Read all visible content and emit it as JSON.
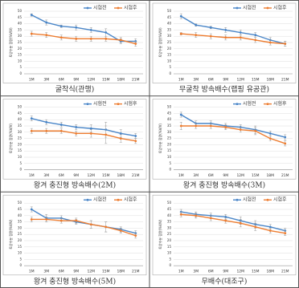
{
  "chart_data": [
    {
      "type": "line",
      "title": "굴착식(관행)",
      "y_label": "토양수분 함량(%V/V)",
      "categories": [
        "1M",
        "3M",
        "6M",
        "9M",
        "12M",
        "15M",
        "18M",
        "21M"
      ],
      "ylim": [
        0,
        50
      ],
      "yticks": [
        0,
        5,
        10,
        15,
        20,
        25,
        30,
        35,
        40,
        45,
        50
      ],
      "grid": true,
      "series": [
        {
          "name": "시험전",
          "color": "#4a86c8",
          "values": [
            47,
            41,
            38,
            37,
            35,
            33,
            26,
            26
          ],
          "errors": [
            1,
            2,
            1,
            2,
            2,
            3,
            2,
            2
          ]
        },
        {
          "name": "시험후",
          "color": "#ed7d31",
          "values": [
            32,
            31,
            29,
            28,
            28,
            28,
            27,
            24
          ],
          "errors": [
            2,
            2,
            2,
            2,
            2,
            2,
            2,
            2
          ]
        }
      ]
    },
    {
      "type": "line",
      "title": "무굴착 방속배수(랩핑 유공관)",
      "y_label": "토양수분 함량(%V/V)",
      "categories": [
        "1M",
        "3M",
        "6M",
        "9M",
        "12M",
        "15M",
        "18M",
        "21M"
      ],
      "ylim": [
        0,
        50
      ],
      "yticks": [
        0,
        5,
        10,
        15,
        20,
        25,
        30,
        35,
        40,
        45,
        50
      ],
      "grid": true,
      "series": [
        {
          "name": "시험전",
          "color": "#4a86c8",
          "values": [
            46,
            39,
            37,
            35,
            33,
            31,
            27,
            24
          ],
          "errors": [
            2,
            1,
            1,
            2,
            2,
            2,
            2,
            2
          ]
        },
        {
          "name": "시험후",
          "color": "#ed7d31",
          "values": [
            32,
            31,
            30,
            29,
            29,
            27,
            25,
            24
          ],
          "errors": [
            1,
            2,
            2,
            2,
            2,
            2,
            2,
            2
          ]
        }
      ]
    },
    {
      "type": "line",
      "title": "왕겨 충진형 방속배수(2M)",
      "y_label": "토양수분 함량(%V/V)",
      "categories": [
        "1M",
        "3M",
        "6M",
        "9M",
        "12M",
        "15M",
        "18M",
        "21M"
      ],
      "ylim": [
        0,
        50
      ],
      "yticks": [
        0,
        5,
        10,
        15,
        20,
        25,
        30,
        35,
        40,
        45,
        50
      ],
      "grid": true,
      "series": [
        {
          "name": "시험전",
          "color": "#4a86c8",
          "values": [
            41,
            38,
            36,
            34,
            33,
            32,
            29,
            27
          ],
          "errors": [
            2,
            2,
            2,
            2,
            3,
            6,
            3,
            2
          ]
        },
        {
          "name": "시험후",
          "color": "#ed7d31",
          "values": [
            31,
            31,
            31,
            29,
            29,
            28,
            25,
            23
          ],
          "errors": [
            2,
            2,
            2,
            2,
            3,
            7,
            3,
            2
          ]
        }
      ]
    },
    {
      "type": "line",
      "title": "왕겨 충진형 방속배수(3M)",
      "y_label": "토양수분 함량(%V/V)",
      "categories": [
        "1M",
        "3M",
        "6M",
        "9M",
        "12M",
        "15M",
        "18M",
        "21M"
      ],
      "ylim": [
        0,
        50
      ],
      "yticks": [
        0,
        5,
        10,
        15,
        20,
        25,
        30,
        35,
        40,
        45,
        50
      ],
      "grid": true,
      "series": [
        {
          "name": "시험전",
          "color": "#4a86c8",
          "values": [
            44,
            37,
            37,
            35,
            34,
            32,
            29,
            26
          ],
          "errors": [
            2,
            2,
            2,
            2,
            2,
            3,
            2,
            2
          ]
        },
        {
          "name": "시험후",
          "color": "#ed7d31",
          "values": [
            35,
            35,
            35,
            34,
            32,
            31,
            25,
            21
          ],
          "errors": [
            3,
            2,
            2,
            2,
            2,
            3,
            2,
            2
          ]
        }
      ]
    },
    {
      "type": "line",
      "title": "왕겨 충진형 방속배수(5M)",
      "y_label": "토양수분 함량(%V/V)",
      "categories": [
        "1M",
        "3M",
        "6M",
        "9M",
        "12M",
        "15M",
        "18M",
        "21M"
      ],
      "ylim": [
        0,
        50
      ],
      "yticks": [
        0,
        5,
        10,
        15,
        20,
        25,
        30,
        35,
        40,
        45,
        50
      ],
      "grid": true,
      "series": [
        {
          "name": "시험전",
          "color": "#4a86c8",
          "values": [
            45,
            38,
            38,
            35,
            33,
            31,
            29,
            26
          ],
          "errors": [
            2,
            3,
            2,
            2,
            3,
            4,
            2,
            2
          ]
        },
        {
          "name": "시험후",
          "color": "#ed7d31",
          "values": [
            37,
            37,
            36,
            36,
            33,
            31,
            28,
            24
          ],
          "errors": [
            2,
            2,
            2,
            2,
            3,
            4,
            2,
            2
          ]
        }
      ]
    },
    {
      "type": "line",
      "title": "무배수(대조구)",
      "y_label": "토양수분 함량(%V/V)",
      "categories": [
        "1M",
        "3M",
        "6M",
        "9M",
        "12M",
        "15M",
        "18M",
        "21M"
      ],
      "ylim": [
        0,
        50
      ],
      "yticks": [
        0,
        5,
        10,
        15,
        20,
        25,
        30,
        35,
        40,
        45,
        50
      ],
      "grid": true,
      "series": [
        {
          "name": "시험전",
          "color": "#4a86c8",
          "values": [
            43,
            41,
            40,
            39,
            36,
            33,
            31,
            28
          ],
          "errors": [
            2,
            2,
            2,
            2,
            3,
            3,
            2,
            2
          ]
        },
        {
          "name": "시험후",
          "color": "#ed7d31",
          "values": [
            41,
            40,
            38,
            36,
            34,
            31,
            28,
            26
          ],
          "errors": [
            2,
            2,
            2,
            2,
            3,
            3,
            2,
            2
          ]
        }
      ]
    }
  ]
}
